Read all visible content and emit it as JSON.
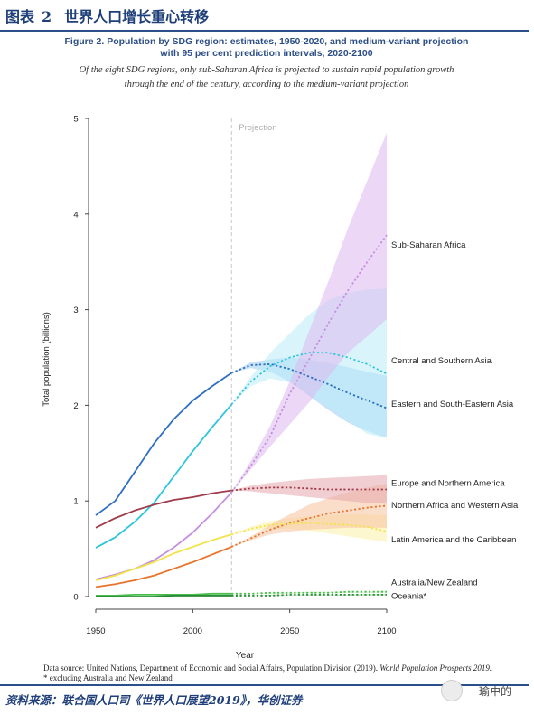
{
  "header": {
    "label": "图表",
    "number": "2",
    "title": "世界人口增长重心转移"
  },
  "figure": {
    "title_line1": "Figure 2. Population by SDG region: estimates, 1950-2020, and medium-variant projection",
    "title_line2": "with 95 per cent prediction intervals, 2020-2100",
    "subtitle_line1": "Of the eight SDG regions, only sub-Saharan Africa is projected to sustain rapid population growth",
    "subtitle_line2": "through the end of the century, according to the medium-variant projection"
  },
  "footnote": {
    "source_prefix": "Data source: United Nations, Department of Economic and Social Affairs, Population Division (2019).",
    "source_title": "World Population Prospects 2019.",
    "note": "* excluding Australia and New Zealand"
  },
  "source_line": "资料来源：联合国人口司《世界人口展望2019》，华创证券",
  "watermark": {
    "text": "一瑜中的",
    "icon": "wechat-icon"
  },
  "chart_data": {
    "type": "line",
    "title": "Figure 2. Population by SDG region: estimates, 1950-2020, and medium-variant projection with 95 per cent prediction intervals, 2020-2100",
    "xlabel": "Year",
    "ylabel": "Total population (billions)",
    "xlim": [
      1950,
      2100
    ],
    "ylim": [
      0,
      5
    ],
    "x_ticks": [
      1950,
      2000,
      2050,
      2100
    ],
    "y_ticks": [
      0,
      1,
      2,
      3,
      4,
      5
    ],
    "projection_start": 2020,
    "projection_label": "Projection",
    "grid": false,
    "legend": "direct labels at right",
    "x": [
      1950,
      1960,
      1970,
      1980,
      1990,
      2000,
      2010,
      2020,
      2030,
      2040,
      2050,
      2060,
      2070,
      2080,
      2090,
      2100
    ],
    "series": [
      {
        "name": "Sub-Saharan Africa",
        "color": "#c58fe0",
        "band_color": "#dcb8ef",
        "values": [
          0.18,
          0.23,
          0.29,
          0.38,
          0.51,
          0.67,
          0.87,
          1.09,
          1.37,
          1.68,
          2.12,
          2.48,
          2.86,
          3.2,
          3.5,
          3.78
        ],
        "lower": [
          null,
          null,
          null,
          null,
          null,
          null,
          null,
          1.09,
          1.33,
          1.57,
          1.8,
          2.03,
          2.3,
          2.55,
          2.72,
          2.9
        ],
        "upper": [
          null,
          null,
          null,
          null,
          null,
          null,
          null,
          1.09,
          1.42,
          1.79,
          2.25,
          2.78,
          3.3,
          3.85,
          4.35,
          4.85
        ]
      },
      {
        "name": "Central and Southern Asia",
        "color": "#2ec4dc",
        "band_color": "#b9ecf7",
        "values": [
          0.51,
          0.62,
          0.78,
          0.98,
          1.25,
          1.52,
          1.77,
          2.01,
          2.25,
          2.41,
          2.5,
          2.55,
          2.55,
          2.5,
          2.43,
          2.33
        ],
        "lower": [
          null,
          null,
          null,
          null,
          null,
          null,
          null,
          2.01,
          2.2,
          2.28,
          2.24,
          2.12,
          1.98,
          1.84,
          1.7,
          1.66
        ],
        "upper": [
          null,
          null,
          null,
          null,
          null,
          null,
          null,
          2.01,
          2.3,
          2.55,
          2.75,
          2.95,
          3.1,
          3.18,
          3.21,
          3.22
        ]
      },
      {
        "name": "Eastern and South-Eastern Asia",
        "color": "#2e6fc4",
        "band_color": "#9ccaf2",
        "values": [
          0.85,
          1.0,
          1.3,
          1.6,
          1.85,
          2.05,
          2.2,
          2.34,
          2.42,
          2.43,
          2.38,
          2.3,
          2.22,
          2.13,
          2.05,
          1.97
        ],
        "lower": [
          null,
          null,
          null,
          null,
          null,
          null,
          null,
          2.34,
          2.39,
          2.35,
          2.25,
          2.1,
          1.95,
          1.82,
          1.73,
          1.66
        ],
        "upper": [
          null,
          null,
          null,
          null,
          null,
          null,
          null,
          2.34,
          2.45,
          2.48,
          2.5,
          2.48,
          2.44,
          2.4,
          2.35,
          2.31
        ]
      },
      {
        "name": "Europe and Northern America",
        "color": "#a03a4a",
        "band_color": "#e6a6ac",
        "values": [
          0.72,
          0.82,
          0.9,
          0.96,
          1.01,
          1.04,
          1.08,
          1.11,
          1.13,
          1.14,
          1.14,
          1.13,
          1.12,
          1.12,
          1.12,
          1.12
        ],
        "lower": [
          null,
          null,
          null,
          null,
          null,
          null,
          null,
          1.11,
          1.1,
          1.08,
          1.06,
          1.04,
          1.02,
          1.0,
          0.98,
          0.97
        ],
        "upper": [
          null,
          null,
          null,
          null,
          null,
          null,
          null,
          1.11,
          1.16,
          1.19,
          1.21,
          1.23,
          1.24,
          1.25,
          1.26,
          1.27
        ]
      },
      {
        "name": "Northern Africa and Western Asia",
        "color": "#e8732a",
        "band_color": "#f6c29e",
        "values": [
          0.1,
          0.13,
          0.17,
          0.22,
          0.29,
          0.36,
          0.44,
          0.52,
          0.61,
          0.7,
          0.77,
          0.82,
          0.87,
          0.9,
          0.93,
          0.95
        ],
        "lower": [
          null,
          null,
          null,
          null,
          null,
          null,
          null,
          0.52,
          0.59,
          0.65,
          0.68,
          0.7,
          0.71,
          0.72,
          0.72,
          0.72
        ],
        "upper": [
          null,
          null,
          null,
          null,
          null,
          null,
          null,
          0.52,
          0.63,
          0.75,
          0.86,
          0.96,
          1.03,
          1.09,
          1.14,
          1.18
        ]
      },
      {
        "name": "Latin America and the Caribbean",
        "color": "#f3e34a",
        "band_color": "#faf0a6",
        "values": [
          0.17,
          0.22,
          0.29,
          0.36,
          0.45,
          0.52,
          0.59,
          0.65,
          0.71,
          0.75,
          0.76,
          0.77,
          0.76,
          0.75,
          0.73,
          0.68
        ],
        "lower": [
          null,
          null,
          null,
          null,
          null,
          null,
          null,
          0.65,
          0.69,
          0.71,
          0.71,
          0.69,
          0.66,
          0.63,
          0.6,
          0.57
        ],
        "upper": [
          null,
          null,
          null,
          null,
          null,
          null,
          null,
          0.65,
          0.73,
          0.79,
          0.82,
          0.84,
          0.85,
          0.86,
          0.86,
          0.85
        ]
      },
      {
        "name": "Australia/New Zealand",
        "color": "#49bd4a",
        "band_color": "#b3e3b0",
        "values": [
          0.01,
          0.01,
          0.02,
          0.02,
          0.02,
          0.02,
          0.03,
          0.03,
          0.03,
          0.04,
          0.04,
          0.04,
          0.04,
          0.05,
          0.05,
          0.05
        ],
        "lower": [
          null,
          null,
          null,
          null,
          null,
          null,
          null,
          0.03,
          0.03,
          0.03,
          0.03,
          0.04,
          0.04,
          0.04,
          0.04,
          0.04
        ],
        "upper": [
          null,
          null,
          null,
          null,
          null,
          null,
          null,
          0.03,
          0.03,
          0.04,
          0.04,
          0.05,
          0.05,
          0.05,
          0.05,
          0.06
        ]
      },
      {
        "name": "Oceania*",
        "color": "#2c8a3a",
        "band_color": "#a6d8a6",
        "values": [
          0.0,
          0.0,
          0.0,
          0.0,
          0.01,
          0.01,
          0.01,
          0.01,
          0.01,
          0.01,
          0.02,
          0.02,
          0.02,
          0.02,
          0.02,
          0.02
        ],
        "lower": [
          null,
          null,
          null,
          null,
          null,
          null,
          null,
          0.01,
          0.01,
          0.01,
          0.01,
          0.01,
          0.01,
          0.01,
          0.01,
          0.01
        ],
        "upper": [
          null,
          null,
          null,
          null,
          null,
          null,
          null,
          0.01,
          0.01,
          0.02,
          0.02,
          0.02,
          0.02,
          0.02,
          0.03,
          0.03
        ]
      }
    ],
    "label_values": [
      3.68,
      2.47,
      2.02,
      1.19,
      0.96,
      0.6,
      0.15,
      0.01
    ]
  }
}
